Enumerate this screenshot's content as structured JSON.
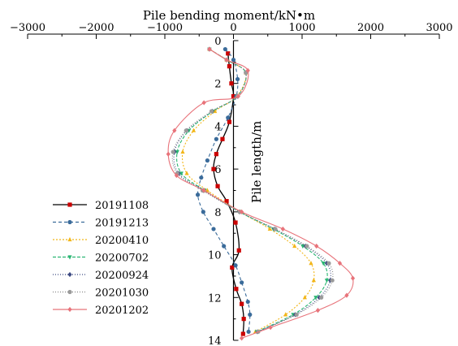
{
  "chart_data": {
    "type": "line",
    "title": "Pile bending moment/kN•m",
    "xlabel": "Pile bending moment/kN•m",
    "ylabel": "Pile length/m",
    "xlim": [
      -3000,
      3000
    ],
    "ylim": [
      0,
      14
    ],
    "x_ticks": [
      "−3000",
      "−2000",
      "−1000",
      "0",
      "1000",
      "2000",
      "3000"
    ],
    "y_ticks": [
      "0",
      "2",
      "4",
      "6",
      "8",
      "10",
      "12",
      "14"
    ],
    "x_axis_position": "top",
    "y_axis_position": "zero",
    "y_inverted": true,
    "grid": false,
    "legend_position": "lower-left",
    "series": [
      {
        "name": "20191108",
        "color": "#000000",
        "dash": "none",
        "marker": "square",
        "marker_color": "#cc0000",
        "points": [
          [
            -80,
            0.6
          ],
          [
            -60,
            1.2
          ],
          [
            -30,
            2.0
          ],
          [
            0,
            2.6
          ],
          [
            -60,
            3.8
          ],
          [
            -160,
            4.6
          ],
          [
            -250,
            5.3
          ],
          [
            -290,
            6.0
          ],
          [
            -230,
            6.8
          ],
          [
            -100,
            7.5
          ],
          [
            30,
            8.5
          ],
          [
            80,
            9.8
          ],
          [
            -20,
            10.6
          ],
          [
            40,
            11.6
          ],
          [
            120,
            12.3
          ],
          [
            150,
            13.0
          ],
          [
            140,
            13.7
          ]
        ]
      },
      {
        "name": "20191213",
        "color": "#3a6b9a",
        "dash": "4,3",
        "marker": "circle",
        "marker_color": "#3a6b9a",
        "points": [
          [
            -120,
            0.4
          ],
          [
            0,
            0.9
          ],
          [
            60,
            1.8
          ],
          [
            40,
            2.6
          ],
          [
            -80,
            3.6
          ],
          [
            -250,
            4.6
          ],
          [
            -380,
            5.6
          ],
          [
            -470,
            6.4
          ],
          [
            -520,
            7.2
          ],
          [
            -440,
            8.0
          ],
          [
            -290,
            8.8
          ],
          [
            -140,
            9.6
          ],
          [
            30,
            10.5
          ],
          [
            120,
            11.3
          ],
          [
            210,
            12.2
          ],
          [
            240,
            12.8
          ],
          [
            220,
            13.6
          ]
        ]
      },
      {
        "name": "20200410",
        "color": "#f2b619",
        "dash": "2,2",
        "marker": "triangle",
        "marker_color": "#f2b619",
        "points": [
          [
            -350,
            0.4
          ],
          [
            -100,
            0.9
          ],
          [
            180,
            1.5
          ],
          [
            50,
            2.6
          ],
          [
            -270,
            3.3
          ],
          [
            -580,
            4.2
          ],
          [
            -740,
            5.2
          ],
          [
            -680,
            6.2
          ],
          [
            -380,
            7.0
          ],
          [
            100,
            8.0
          ],
          [
            530,
            8.8
          ],
          [
            890,
            9.6
          ],
          [
            1130,
            10.4
          ],
          [
            1170,
            11.2
          ],
          [
            1040,
            12.0
          ],
          [
            760,
            12.8
          ],
          [
            320,
            13.6
          ]
        ]
      },
      {
        "name": "20200702",
        "color": "#2bb673",
        "dash": "4,2",
        "marker": "triangle-down",
        "marker_color": "#2bb673",
        "points": [
          [
            -350,
            0.4
          ],
          [
            -100,
            0.9
          ],
          [
            180,
            1.5
          ],
          [
            60,
            2.6
          ],
          [
            -300,
            3.3
          ],
          [
            -650,
            4.2
          ],
          [
            -820,
            5.2
          ],
          [
            -760,
            6.2
          ],
          [
            -420,
            7.0
          ],
          [
            90,
            8.0
          ],
          [
            580,
            8.8
          ],
          [
            1010,
            9.6
          ],
          [
            1310,
            10.4
          ],
          [
            1360,
            11.2
          ],
          [
            1200,
            12.0
          ],
          [
            870,
            12.8
          ],
          [
            340,
            13.6
          ]
        ]
      },
      {
        "name": "20200924",
        "color": "#3c4a82",
        "dash": "1,2",
        "marker": "diamond",
        "marker_color": "#3c4a82",
        "points": [
          [
            -350,
            0.4
          ],
          [
            -100,
            0.9
          ],
          [
            180,
            1.5
          ],
          [
            60,
            2.6
          ],
          [
            -310,
            3.3
          ],
          [
            -680,
            4.2
          ],
          [
            -860,
            5.2
          ],
          [
            -800,
            6.2
          ],
          [
            -440,
            7.0
          ],
          [
            90,
            8.0
          ],
          [
            600,
            8.8
          ],
          [
            1050,
            9.6
          ],
          [
            1360,
            10.4
          ],
          [
            1410,
            11.2
          ],
          [
            1250,
            12.0
          ],
          [
            900,
            12.8
          ],
          [
            350,
            13.6
          ]
        ]
      },
      {
        "name": "20201030",
        "color": "#888888",
        "dash": "1,2",
        "marker": "circle",
        "marker_color": "#9a9a9a",
        "points": [
          [
            -350,
            0.4
          ],
          [
            -100,
            0.9
          ],
          [
            180,
            1.5
          ],
          [
            60,
            2.6
          ],
          [
            -320,
            3.3
          ],
          [
            -690,
            4.2
          ],
          [
            -880,
            5.2
          ],
          [
            -820,
            6.2
          ],
          [
            -450,
            7.0
          ],
          [
            90,
            8.0
          ],
          [
            610,
            8.8
          ],
          [
            1070,
            9.6
          ],
          [
            1390,
            10.4
          ],
          [
            1440,
            11.2
          ],
          [
            1280,
            12.0
          ],
          [
            920,
            12.8
          ],
          [
            360,
            13.6
          ]
        ]
      },
      {
        "name": "20201202",
        "color": "#e8737a",
        "dash": "none",
        "marker": "diamond",
        "marker_color": "#e8737a",
        "points": [
          [
            -350,
            0.4
          ],
          [
            -100,
            0.9
          ],
          [
            210,
            1.4
          ],
          [
            70,
            2.6
          ],
          [
            -430,
            2.9
          ],
          [
            -860,
            4.2
          ],
          [
            -950,
            5.3
          ],
          [
            -830,
            6.3
          ],
          [
            -430,
            7.0
          ],
          [
            120,
            8.0
          ],
          [
            720,
            8.8
          ],
          [
            1210,
            9.6
          ],
          [
            1550,
            10.4
          ],
          [
            1740,
            11.1
          ],
          [
            1650,
            11.9
          ],
          [
            1230,
            12.6
          ],
          [
            540,
            13.4
          ],
          [
            120,
            13.9
          ]
        ]
      }
    ]
  }
}
